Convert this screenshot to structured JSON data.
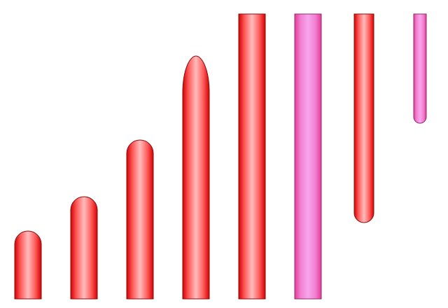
{
  "colors": {
    "red_edge": "#d40000",
    "red_mid": "#ff5a5a",
    "red_center": "#ffbcbc",
    "red_outline": "#8a1010",
    "pink_edge": "#e23a96",
    "pink_mid": "#f27fd0",
    "pink_center": "#f8a6ee",
    "pink_outline": "#8e2f6e"
  },
  "bars": [
    {
      "id": "bar-1",
      "color": "red",
      "cap_top": "round",
      "cap_bottom": "flat"
    },
    {
      "id": "bar-2",
      "color": "red",
      "cap_top": "round",
      "cap_bottom": "flat"
    },
    {
      "id": "bar-3",
      "color": "red",
      "cap_top": "round",
      "cap_bottom": "flat"
    },
    {
      "id": "bar-4",
      "color": "red",
      "cap_top": "pointed",
      "cap_bottom": "flat"
    },
    {
      "id": "bar-5",
      "color": "red",
      "cap_top": "flat",
      "cap_bottom": "flat"
    },
    {
      "id": "bar-6",
      "color": "pink",
      "cap_top": "flat",
      "cap_bottom": "flat"
    },
    {
      "id": "bar-7",
      "color": "red",
      "cap_top": "flat",
      "cap_bottom": "round"
    },
    {
      "id": "bar-8",
      "color": "pink",
      "cap_top": "flat",
      "cap_bottom": "round"
    }
  ]
}
